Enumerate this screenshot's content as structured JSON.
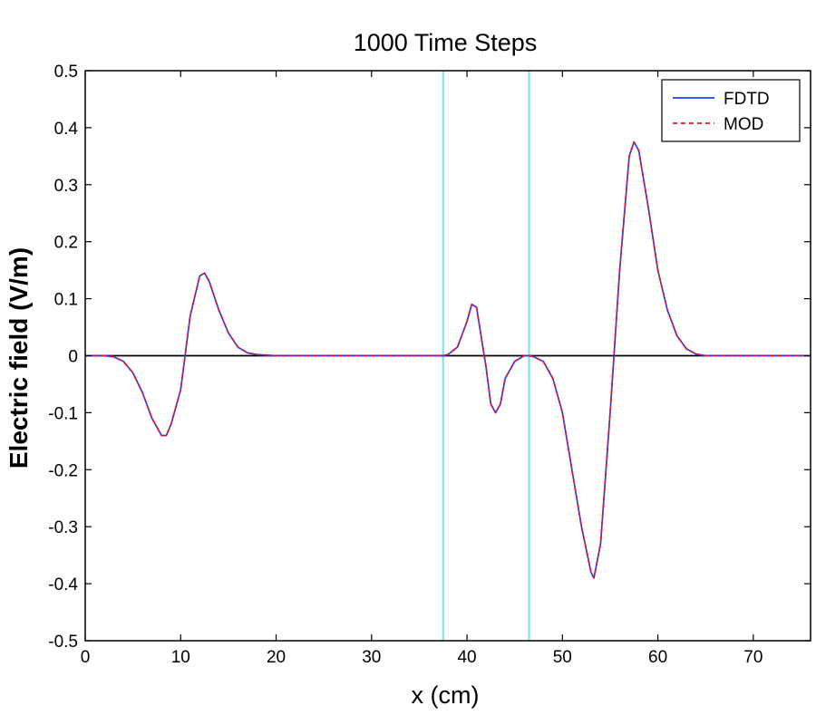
{
  "chart_data": {
    "type": "line",
    "title": "1000 Time Steps",
    "xlabel": "x (cm)",
    "ylabel": "Electric field (V/m)",
    "xlim": [
      0,
      76
    ],
    "ylim": [
      -0.5,
      0.5
    ],
    "xticks": [
      0,
      10,
      20,
      30,
      40,
      50,
      60,
      70
    ],
    "yticks": [
      -0.5,
      -0.4,
      -0.3,
      -0.2,
      -0.1,
      0,
      0.1,
      0.2,
      0.3,
      0.4,
      0.5
    ],
    "grid": false,
    "legend_position": "top-right",
    "zero_line": true,
    "vertical_lines": [
      37.5,
      46.5
    ],
    "vertical_line_color": "#7fe8d6",
    "series": [
      {
        "name": "FDTD",
        "color": "#1f3fff",
        "style": "solid",
        "x": [
          0,
          1,
          2,
          3,
          4,
          5,
          6,
          7,
          8,
          8.5,
          9,
          10,
          11,
          12,
          12.5,
          13,
          14,
          15,
          16,
          17,
          18,
          20,
          25,
          30,
          35,
          37.5,
          38,
          39,
          40,
          40.5,
          41,
          42,
          42.5,
          43,
          43.5,
          44,
          45,
          46,
          46.5,
          47,
          48,
          49,
          50,
          51,
          52,
          53,
          53.3,
          54,
          55,
          56,
          57,
          57.5,
          58,
          59,
          60,
          61,
          62,
          63,
          64,
          65,
          70,
          76
        ],
        "y": [
          0,
          0,
          0,
          -0.002,
          -0.01,
          -0.03,
          -0.065,
          -0.11,
          -0.14,
          -0.14,
          -0.12,
          -0.06,
          0.07,
          0.14,
          0.145,
          0.13,
          0.08,
          0.04,
          0.015,
          0.005,
          0.002,
          0,
          0,
          0,
          0,
          0,
          0.002,
          0.015,
          0.06,
          0.09,
          0.085,
          -0.02,
          -0.085,
          -0.1,
          -0.085,
          -0.04,
          -0.01,
          0,
          0,
          -0.002,
          -0.01,
          -0.04,
          -0.1,
          -0.2,
          -0.3,
          -0.38,
          -0.39,
          -0.33,
          -0.1,
          0.15,
          0.35,
          0.375,
          0.36,
          0.26,
          0.15,
          0.08,
          0.035,
          0.012,
          0.003,
          0,
          0,
          0
        ]
      },
      {
        "name": "MOD",
        "color": "#e8102a",
        "style": "dashed",
        "x": [
          0,
          1,
          2,
          3,
          4,
          5,
          6,
          7,
          8,
          8.5,
          9,
          10,
          11,
          12,
          12.5,
          13,
          14,
          15,
          16,
          17,
          18,
          20,
          25,
          30,
          35,
          37.5,
          38,
          39,
          40,
          40.5,
          41,
          42,
          42.5,
          43,
          43.5,
          44,
          45,
          46,
          46.5,
          47,
          48,
          49,
          50,
          51,
          52,
          53,
          53.3,
          54,
          55,
          56,
          57,
          57.5,
          58,
          59,
          60,
          61,
          62,
          63,
          64,
          65,
          70,
          76
        ],
        "y": [
          0,
          0,
          0,
          -0.002,
          -0.01,
          -0.03,
          -0.065,
          -0.11,
          -0.14,
          -0.14,
          -0.12,
          -0.06,
          0.07,
          0.14,
          0.145,
          0.13,
          0.08,
          0.04,
          0.015,
          0.005,
          0.002,
          0,
          0,
          0,
          0,
          0,
          0.002,
          0.015,
          0.06,
          0.09,
          0.085,
          -0.02,
          -0.085,
          -0.1,
          -0.085,
          -0.04,
          -0.01,
          0,
          0,
          -0.002,
          -0.01,
          -0.04,
          -0.1,
          -0.2,
          -0.3,
          -0.38,
          -0.39,
          -0.33,
          -0.1,
          0.15,
          0.35,
          0.375,
          0.36,
          0.26,
          0.15,
          0.08,
          0.035,
          0.012,
          0.003,
          0,
          0,
          0
        ]
      }
    ]
  }
}
